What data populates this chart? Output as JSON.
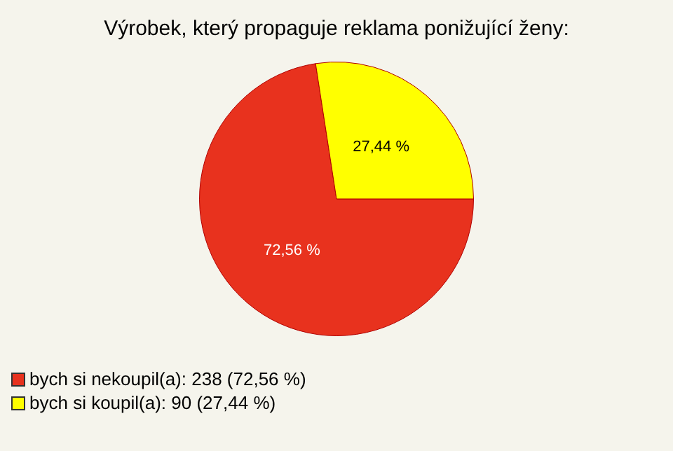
{
  "chart_data": {
    "type": "pie",
    "title": "Výrobek, který propaguje reklama ponižující ženy:",
    "categories": [
      "bych si nekoupil(a): 238 (72,56 %)",
      "bych si koupil(a): 90 (27,44 %)"
    ],
    "values": [
      72.56,
      27.44
    ],
    "colors": [
      "#e8321e",
      "#ffff00"
    ],
    "value_labels": [
      "72,56 %",
      "27,44 %"
    ],
    "legend": "bottom left"
  }
}
